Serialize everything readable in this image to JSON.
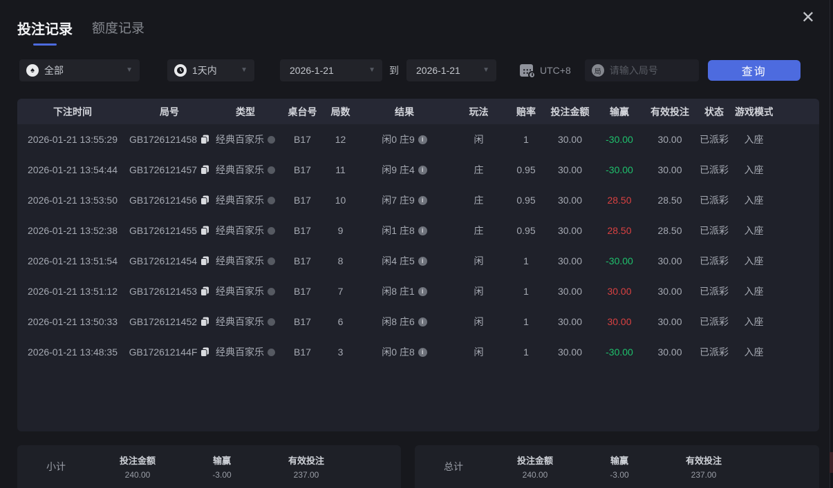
{
  "tabs": [
    {
      "label": "投注记录",
      "active": true
    },
    {
      "label": "额度记录",
      "active": false
    }
  ],
  "close_label": "✕",
  "filters": {
    "game_type": {
      "value": "全部",
      "icon": "spade",
      "icon_glyph": "♠"
    },
    "time_range": {
      "value": "1天内",
      "icon": "clock"
    },
    "date_from": "2026-1-21",
    "to_label": "到",
    "date_to": "2026-1-21",
    "timezone": "UTC+8",
    "round_icon_glyph": "局",
    "round_placeholder": "请输入局号",
    "query_button": "查询",
    "caret_glyph": "▼"
  },
  "table": {
    "headers": [
      "下注时间",
      "局号",
      "类型",
      "桌台号",
      "局数",
      "结果",
      "玩法",
      "赔率",
      "投注金额",
      "输赢",
      "有效投注",
      "状态",
      "游戏模式"
    ],
    "rows": [
      {
        "time": "2026-01-21 13:55:29",
        "round": "GB1726121458",
        "type": "经典百家乐",
        "table_no": "B17",
        "games": "12",
        "result": "闲0 庄9",
        "play": "闲",
        "odds": "1",
        "bet": "30.00",
        "winloss": "-30.00",
        "winloss_color": "green",
        "valid": "30.00",
        "status": "已派彩",
        "mode": "入座"
      },
      {
        "time": "2026-01-21 13:54:44",
        "round": "GB1726121457",
        "type": "经典百家乐",
        "table_no": "B17",
        "games": "11",
        "result": "闲9 庄4",
        "play": "庄",
        "odds": "0.95",
        "bet": "30.00",
        "winloss": "-30.00",
        "winloss_color": "green",
        "valid": "30.00",
        "status": "已派彩",
        "mode": "入座"
      },
      {
        "time": "2026-01-21 13:53:50",
        "round": "GB1726121456",
        "type": "经典百家乐",
        "table_no": "B17",
        "games": "10",
        "result": "闲7 庄9",
        "play": "庄",
        "odds": "0.95",
        "bet": "30.00",
        "winloss": "28.50",
        "winloss_color": "red",
        "valid": "28.50",
        "status": "已派彩",
        "mode": "入座"
      },
      {
        "time": "2026-01-21 13:52:38",
        "round": "GB1726121455",
        "type": "经典百家乐",
        "table_no": "B17",
        "games": "9",
        "result": "闲1 庄8",
        "play": "庄",
        "odds": "0.95",
        "bet": "30.00",
        "winloss": "28.50",
        "winloss_color": "red",
        "valid": "28.50",
        "status": "已派彩",
        "mode": "入座"
      },
      {
        "time": "2026-01-21 13:51:54",
        "round": "GB1726121454",
        "type": "经典百家乐",
        "table_no": "B17",
        "games": "8",
        "result": "闲4 庄5",
        "play": "闲",
        "odds": "1",
        "bet": "30.00",
        "winloss": "-30.00",
        "winloss_color": "green",
        "valid": "30.00",
        "status": "已派彩",
        "mode": "入座"
      },
      {
        "time": "2026-01-21 13:51:12",
        "round": "GB1726121453",
        "type": "经典百家乐",
        "table_no": "B17",
        "games": "7",
        "result": "闲8 庄1",
        "play": "闲",
        "odds": "1",
        "bet": "30.00",
        "winloss": "30.00",
        "winloss_color": "red",
        "valid": "30.00",
        "status": "已派彩",
        "mode": "入座"
      },
      {
        "time": "2026-01-21 13:50:33",
        "round": "GB1726121452",
        "type": "经典百家乐",
        "table_no": "B17",
        "games": "6",
        "result": "闲8 庄6",
        "play": "闲",
        "odds": "1",
        "bet": "30.00",
        "winloss": "30.00",
        "winloss_color": "red",
        "valid": "30.00",
        "status": "已派彩",
        "mode": "入座"
      },
      {
        "time": "2026-01-21 13:48:35",
        "round": "GB172612144F",
        "type": "经典百家乐",
        "table_no": "B17",
        "games": "3",
        "result": "闲0 庄8",
        "play": "闲",
        "odds": "1",
        "bet": "30.00",
        "winloss": "-30.00",
        "winloss_color": "green",
        "valid": "30.00",
        "status": "已派彩",
        "mode": "入座"
      }
    ]
  },
  "summary": {
    "subtotal": {
      "title": "小计",
      "items": [
        {
          "label": "投注金额",
          "value": "240.00",
          "color": "plain"
        },
        {
          "label": "输赢",
          "value": "-3.00",
          "color": "green"
        },
        {
          "label": "有效投注",
          "value": "237.00",
          "color": "plain"
        }
      ]
    },
    "total": {
      "title": "总计",
      "items": [
        {
          "label": "投注金额",
          "value": "240.00",
          "color": "plain"
        },
        {
          "label": "输赢",
          "value": "-3.00",
          "color": "green"
        },
        {
          "label": "有效投注",
          "value": "237.00",
          "color": "plain"
        }
      ]
    }
  },
  "icons": {
    "info_glyph": "i"
  },
  "colors": {
    "accent_blue": "#4d6bdf",
    "win_red": "#d94141",
    "loss_green": "#1fc06c",
    "page_bg": "#17181d",
    "table_panel_bg": "#1f212a",
    "table_header_bg": "#262834"
  }
}
